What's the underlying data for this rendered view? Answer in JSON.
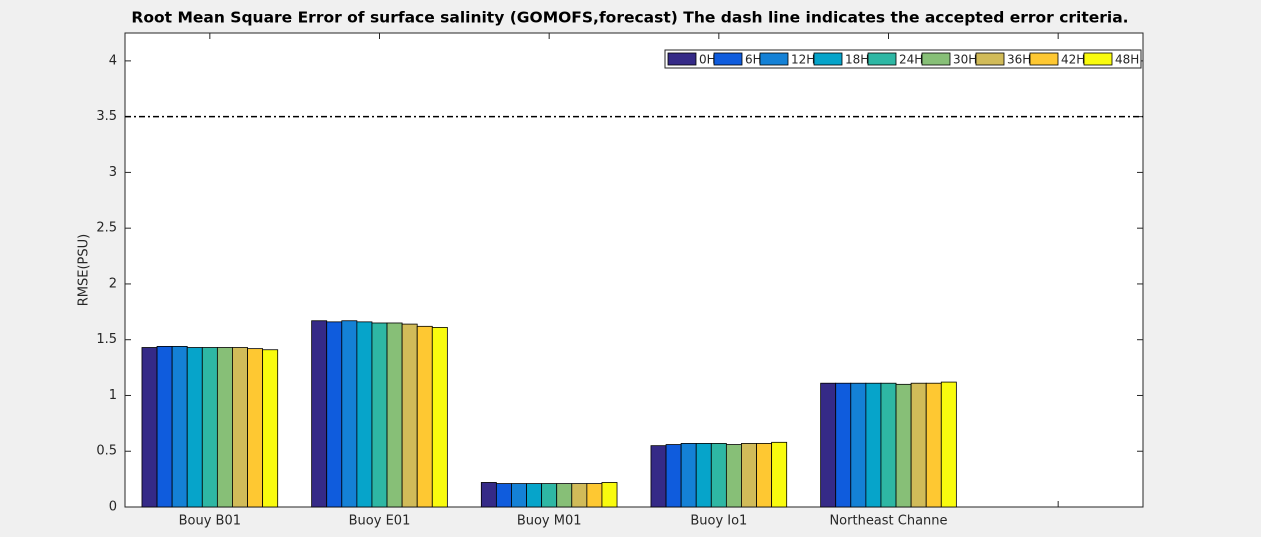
{
  "chart_data": {
    "type": "bar",
    "title": "Root Mean Square Error of surface salinity  (GOMOFS,forecast)   The dash line indicates the accepted error criteria.",
    "ylabel": "RMSE(PSU)",
    "categories": [
      "Bouy B01",
      "Buoy E01",
      "Buoy M01",
      "Buoy Io1",
      "Northeast Channe",
      null
    ],
    "series": [
      {
        "name": "0H",
        "color": "#352a87",
        "values": [
          1.43,
          1.67,
          0.22,
          0.55,
          1.11,
          null
        ]
      },
      {
        "name": "6H",
        "color": "#0f5cdd",
        "values": [
          1.44,
          1.66,
          0.21,
          0.56,
          1.11,
          null
        ]
      },
      {
        "name": "12H",
        "color": "#1481d6",
        "values": [
          1.44,
          1.67,
          0.21,
          0.57,
          1.11,
          null
        ]
      },
      {
        "name": "18H",
        "color": "#06a4ca",
        "values": [
          1.43,
          1.66,
          0.21,
          0.57,
          1.11,
          null
        ]
      },
      {
        "name": "24H",
        "color": "#2eb7a4",
        "values": [
          1.43,
          1.65,
          0.21,
          0.57,
          1.11,
          null
        ]
      },
      {
        "name": "30H",
        "color": "#87bf77",
        "values": [
          1.43,
          1.65,
          0.21,
          0.56,
          1.1,
          null
        ]
      },
      {
        "name": "36H",
        "color": "#d1bb59",
        "values": [
          1.43,
          1.64,
          0.21,
          0.57,
          1.11,
          null
        ]
      },
      {
        "name": "42H",
        "color": "#fec832",
        "values": [
          1.42,
          1.62,
          0.21,
          0.57,
          1.11,
          null
        ]
      },
      {
        "name": "48H",
        "color": "#f9fb0e",
        "values": [
          1.41,
          1.61,
          0.22,
          0.58,
          1.12,
          null
        ]
      }
    ],
    "threshold": 3.5,
    "ylim": [
      0,
      4.25
    ],
    "yticks": [
      0,
      0.5,
      1,
      1.5,
      2,
      2.5,
      3,
      3.5,
      4
    ],
    "legend": "top-right"
  }
}
